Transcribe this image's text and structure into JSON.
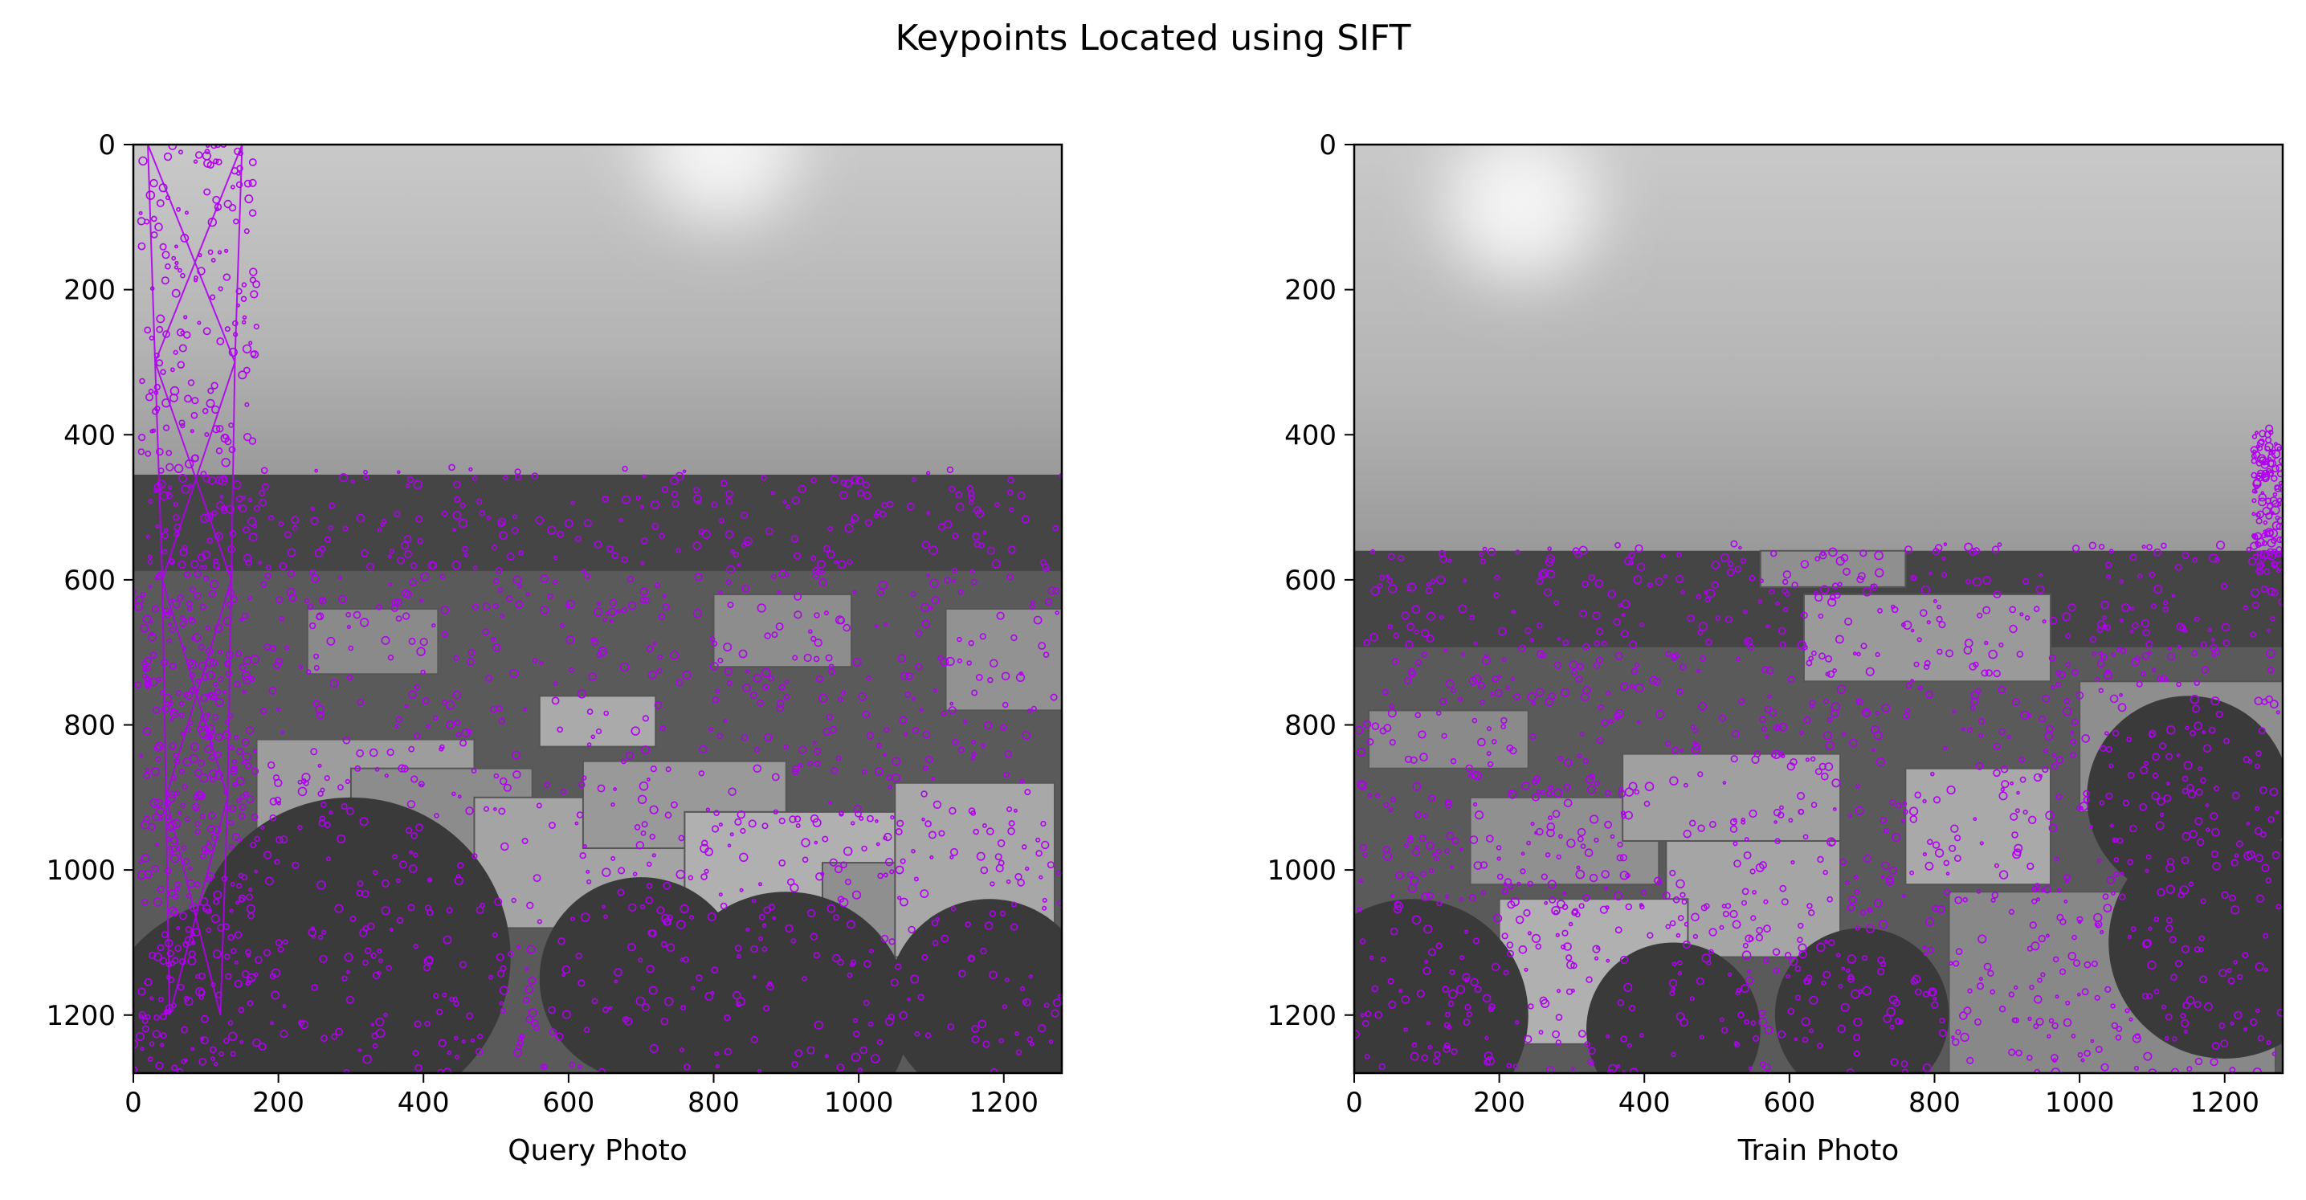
{
  "figure": {
    "title": "Keypoints Located using SIFT"
  },
  "colors": {
    "keypoint": "#b000f0",
    "axis": "#000000",
    "background": "#ffffff"
  },
  "chart_data": [
    {
      "type": "image",
      "title": "",
      "xlabel": "Query Photo",
      "ylabel": "",
      "xlim": [
        0,
        1280
      ],
      "ylim": [
        1280,
        0
      ],
      "xticks": [
        0,
        200,
        400,
        600,
        800,
        1000,
        1200
      ],
      "yticks": [
        0,
        200,
        400,
        600,
        800,
        1000,
        1200
      ],
      "content": "grayscale photograph of rooftops under a bright sky with a lattice tower on the left, overlaid with purple SIFT keypoint circles",
      "horizon_y": 455,
      "sun": [
        810,
        0
      ]
    },
    {
      "type": "image",
      "title": "",
      "xlabel": "Train Photo",
      "ylabel": "",
      "xlim": [
        0,
        1280
      ],
      "ylim": [
        1280,
        0
      ],
      "xticks": [
        0,
        200,
        400,
        600,
        800,
        1000,
        1200
      ],
      "yticks": [
        0,
        200,
        400,
        600,
        800,
        1000,
        1200
      ],
      "content": "grayscale photograph of rooftops and palm trees under a bright sky, overlaid with purple SIFT keypoint circles",
      "horizon_y": 560,
      "sun": [
        230,
        80
      ]
    }
  ]
}
